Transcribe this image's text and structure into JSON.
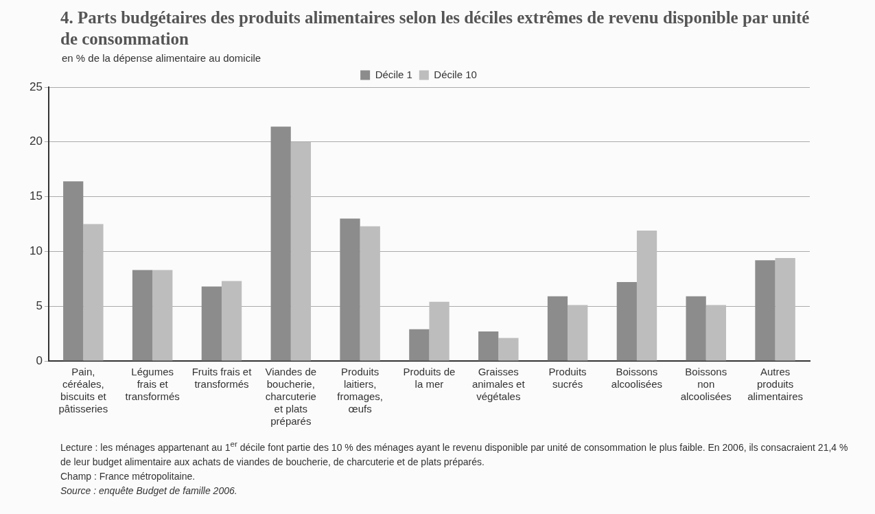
{
  "chart_data": {
    "type": "bar",
    "title": "4. Parts budgétaires des produits alimentaires selon les déciles extrêmes de revenu disponible par unité de consommation",
    "subtitle": "en % de la dépense alimentaire au domicile",
    "categories": [
      "Pain, céréales, biscuits et pâtisseries",
      "Légumes frais et transformés",
      "Fruits frais et transformés",
      "Viandes de boucherie, charcuterie et plats préparés",
      "Produits laitiers, fromages, œufs",
      "Produits de la mer",
      "Graisses animales et végétales",
      "Produits sucrés",
      "Boissons alcoolisées",
      "Boissons non alcoolisées",
      "Autres produits alimentaires"
    ],
    "series": [
      {
        "name": "Décile 1",
        "color": "#8c8c8c",
        "values": [
          16.4,
          8.3,
          6.8,
          21.4,
          13.0,
          2.9,
          2.7,
          5.9,
          7.2,
          5.9,
          9.2
        ]
      },
      {
        "name": "Décile 10",
        "color": "#bdbdbd",
        "values": [
          12.5,
          8.3,
          7.3,
          20.0,
          12.3,
          5.4,
          2.1,
          5.1,
          11.9,
          5.1,
          9.4
        ]
      }
    ],
    "ylim": [
      0,
      25
    ],
    "yticks": [
      0,
      5,
      10,
      15,
      20,
      25
    ],
    "grid": "y",
    "legend": "top",
    "annotations": [
      "Lecture : les ménages appartenant au 1$^{er}$ décile font partie des 10 % des ménages ayant le revenu disponible par unité de consommation le plus faible. En 2006, ils consacraient 21,4 % de leur budget alimentaire aux achats de viandes de boucherie, de charcuterie et de plats préparés.",
      "Champ : France métropolitaine.",
      "Source : enquête Budget de famille 2006."
    ]
  }
}
